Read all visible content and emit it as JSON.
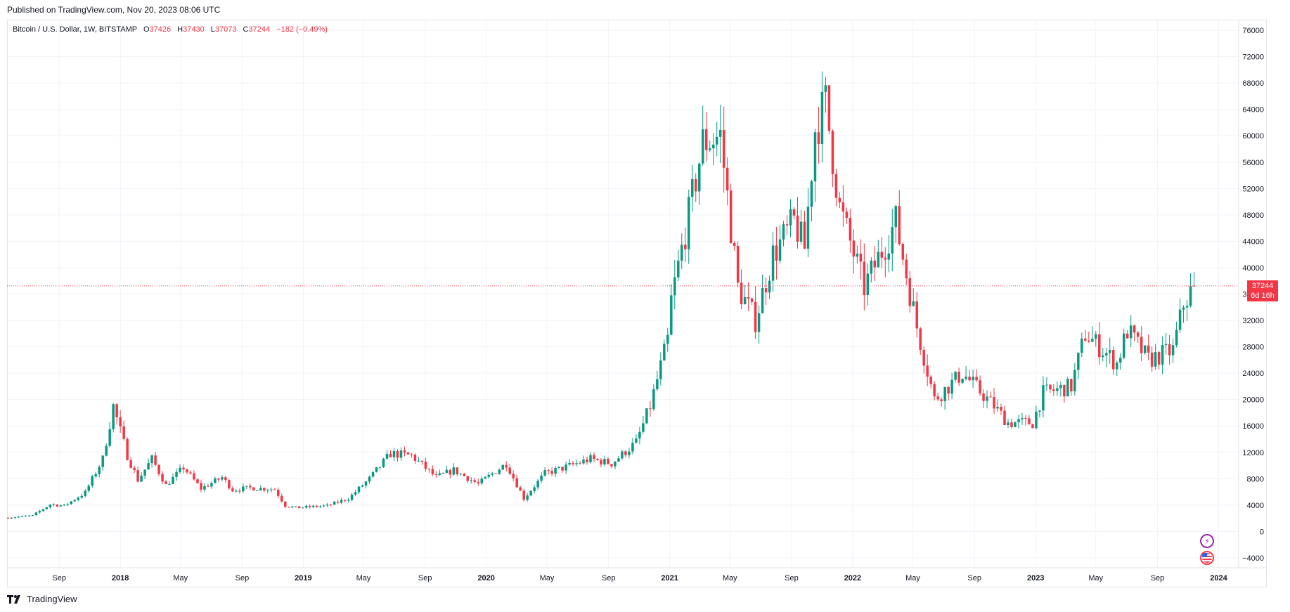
{
  "header": {
    "published": "Published on TradingView.com, Nov 20, 2023 08:06 UTC"
  },
  "legend": {
    "symbol": "Bitcoin / U.S. Dollar, 1W, BITSTAMP",
    "o_label": "O",
    "o_value": "37426",
    "h_label": "H",
    "h_value": "37430",
    "l_label": "L",
    "l_value": "37073",
    "c_label": "C",
    "c_value": "37244",
    "change": "−182 (−0.49%)"
  },
  "price_tag": {
    "price": "37244",
    "countdown": "6d 16h"
  },
  "footer": {
    "brand": "TradingView"
  },
  "icons": {
    "events": "flash-icon",
    "economic": "us-flag-icon",
    "logo": "tradingview-logo-icon"
  },
  "colors": {
    "up": "#089981",
    "down": "#f23645",
    "grid": "#f0f3fa",
    "text": "#131722"
  },
  "chart_data": {
    "type": "candlestick",
    "title": "Bitcoin / U.S. Dollar, 1W, BITSTAMP",
    "ylim": [
      -5500,
      77500
    ],
    "yticks": [
      76000,
      72000,
      68000,
      64000,
      60000,
      56000,
      52000,
      48000,
      44000,
      40000,
      36000,
      32000,
      28000,
      24000,
      20000,
      16000,
      12000,
      8000,
      4000,
      0,
      -4000
    ],
    "ytick_labels": [
      "76000",
      "72000",
      "68000",
      "64000",
      "60000",
      "56000",
      "52000",
      "48000",
      "44000",
      "40000",
      "36000",
      "32000",
      "28000",
      "24000",
      "20000",
      "16000",
      "12000",
      "8000",
      "4000",
      "0",
      "−4000"
    ],
    "xlim": [
      "2017-05-20",
      "2024-02-10"
    ],
    "xticks": [
      {
        "label": "Sep",
        "date": "2017-09-01"
      },
      {
        "label": "2018",
        "date": "2018-01-01"
      },
      {
        "label": "May",
        "date": "2018-05-01"
      },
      {
        "label": "Sep",
        "date": "2018-09-01"
      },
      {
        "label": "2019",
        "date": "2019-01-01"
      },
      {
        "label": "May",
        "date": "2019-05-01"
      },
      {
        "label": "Sep",
        "date": "2019-09-01"
      },
      {
        "label": "2020",
        "date": "2020-01-01"
      },
      {
        "label": "May",
        "date": "2020-05-01"
      },
      {
        "label": "Sep",
        "date": "2020-09-01"
      },
      {
        "label": "2021",
        "date": "2021-01-01"
      },
      {
        "label": "May",
        "date": "2021-05-01"
      },
      {
        "label": "Sep",
        "date": "2021-09-01"
      },
      {
        "label": "2022",
        "date": "2022-01-01"
      },
      {
        "label": "May",
        "date": "2022-05-01"
      },
      {
        "label": "Sep",
        "date": "2022-09-01"
      },
      {
        "label": "2023",
        "date": "2023-01-01"
      },
      {
        "label": "May",
        "date": "2023-05-01"
      },
      {
        "label": "Sep",
        "date": "2023-09-01"
      },
      {
        "label": "2024",
        "date": "2024-01-01"
      }
    ],
    "last_price": 37244,
    "approx_weekly_close_path": [
      [
        "2017-05-22",
        2100
      ],
      [
        "2017-07-10",
        2400
      ],
      [
        "2017-08-14",
        4100
      ],
      [
        "2017-09-11",
        3900
      ],
      [
        "2017-10-23",
        5900
      ],
      [
        "2017-11-27",
        11000
      ],
      [
        "2017-12-18",
        19000
      ],
      [
        "2018-01-15",
        11500
      ],
      [
        "2018-02-05",
        7800
      ],
      [
        "2018-03-05",
        11000
      ],
      [
        "2018-04-02",
        7000
      ],
      [
        "2018-05-07",
        9700
      ],
      [
        "2018-06-11",
        6500
      ],
      [
        "2018-07-23",
        8200
      ],
      [
        "2018-08-13",
        6300
      ],
      [
        "2018-09-17",
        6600
      ],
      [
        "2018-11-05",
        6400
      ],
      [
        "2018-11-26",
        3900
      ],
      [
        "2018-12-17",
        3600
      ],
      [
        "2019-02-18",
        3900
      ],
      [
        "2019-04-01",
        5000
      ],
      [
        "2019-05-13",
        8000
      ],
      [
        "2019-06-24",
        11800
      ],
      [
        "2019-08-05",
        11500
      ],
      [
        "2019-09-23",
        8200
      ],
      [
        "2019-10-28",
        9300
      ],
      [
        "2019-12-16",
        7200
      ],
      [
        "2020-02-10",
        10300
      ],
      [
        "2020-03-16",
        5000
      ],
      [
        "2020-04-27",
        8800
      ],
      [
        "2020-06-01",
        9600
      ],
      [
        "2020-07-27",
        11000
      ],
      [
        "2020-09-07",
        10300
      ],
      [
        "2020-10-26",
        13500
      ],
      [
        "2020-11-23",
        19000
      ],
      [
        "2020-12-28",
        29000
      ],
      [
        "2021-01-04",
        35000
      ],
      [
        "2021-02-08",
        48000
      ],
      [
        "2021-03-08",
        59000
      ],
      [
        "2021-04-12",
        60000
      ],
      [
        "2021-05-17",
        37000
      ],
      [
        "2021-06-21",
        32000
      ],
      [
        "2021-07-26",
        42000
      ],
      [
        "2021-09-06",
        47000
      ],
      [
        "2021-09-27",
        43000
      ],
      [
        "2021-10-18",
        61000
      ],
      [
        "2021-11-08",
        65000
      ],
      [
        "2021-12-06",
        49000
      ],
      [
        "2022-01-24",
        37000
      ],
      [
        "2022-03-28",
        47000
      ],
      [
        "2022-05-09",
        31000
      ],
      [
        "2022-06-13",
        20000
      ],
      [
        "2022-08-08",
        24000
      ],
      [
        "2022-10-10",
        19000
      ],
      [
        "2022-11-07",
        16500
      ],
      [
        "2022-12-26",
        16500
      ],
      [
        "2023-01-16",
        21000
      ],
      [
        "2023-03-13",
        22000
      ],
      [
        "2023-04-10",
        30000
      ],
      [
        "2023-06-12",
        25500
      ],
      [
        "2023-07-03",
        30500
      ],
      [
        "2023-08-14",
        26000
      ],
      [
        "2023-10-02",
        27500
      ],
      [
        "2023-10-23",
        34500
      ],
      [
        "2023-11-13",
        37244
      ]
    ]
  }
}
